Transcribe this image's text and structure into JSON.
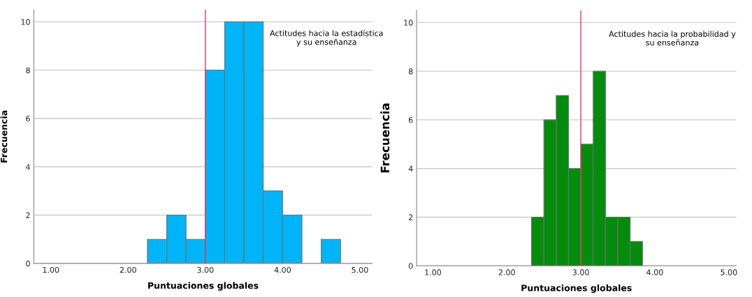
{
  "chart_data": [
    {
      "type": "histogram",
      "xlabel": "Puntuaciones globales",
      "ylabel": "Frecuencia",
      "bins": [
        2.25,
        2.5,
        2.75,
        3.0,
        3.25,
        3.5,
        3.75,
        4.0,
        4.25,
        4.5,
        4.75
      ],
      "values": [
        1,
        2,
        1,
        8,
        10,
        10,
        3,
        2,
        0,
        1
      ],
      "color": "#00b4f8",
      "xlim": [
        0.78,
        5.16
      ],
      "xticks": [
        {
          "value": 1,
          "label": "1.00"
        },
        {
          "value": 2,
          "label": "2.00"
        },
        {
          "value": 3,
          "label": "3.00"
        },
        {
          "value": 4,
          "label": "4.00"
        },
        {
          "value": 5,
          "label": "5.00"
        }
      ],
      "ylim": [
        0,
        10.5
      ],
      "yticks": [
        0,
        2,
        4,
        6,
        8,
        10
      ],
      "grid": "y",
      "ref_lines": [
        {
          "axis": "x",
          "value": 3.0,
          "color": "#e8365d"
        }
      ],
      "annotations": [
        "Actitudes hacia la estadística\ny su enseñanza"
      ]
    },
    {
      "type": "histogram",
      "xlabel": "Puntuaciones globales",
      "ylabel": "Frecuencia",
      "bins": [
        2.333,
        2.5,
        2.667,
        2.833,
        3.0,
        3.167,
        3.333,
        3.5,
        3.667,
        3.833
      ],
      "values": [
        2,
        6,
        7,
        4,
        5,
        8,
        2,
        2,
        1
      ],
      "color": "#048c0c",
      "xlim": [
        0.78,
        5.1
      ],
      "xticks": [
        {
          "value": 1,
          "label": "1.00"
        },
        {
          "value": 2,
          "label": "2.00"
        },
        {
          "value": 3,
          "label": "3.00"
        },
        {
          "value": 4,
          "label": "4.00"
        },
        {
          "value": 5,
          "label": "5.00"
        }
      ],
      "ylim": [
        0,
        10.5
      ],
      "yticks": [
        0,
        2,
        4,
        6,
        8,
        10
      ],
      "grid": "y",
      "ref_lines": [
        {
          "axis": "x",
          "value": 3.0,
          "color": "#e8365d"
        }
      ],
      "annotations": [
        "Actitudes hacia la probabilidad y\nsu enseñanza"
      ]
    }
  ]
}
